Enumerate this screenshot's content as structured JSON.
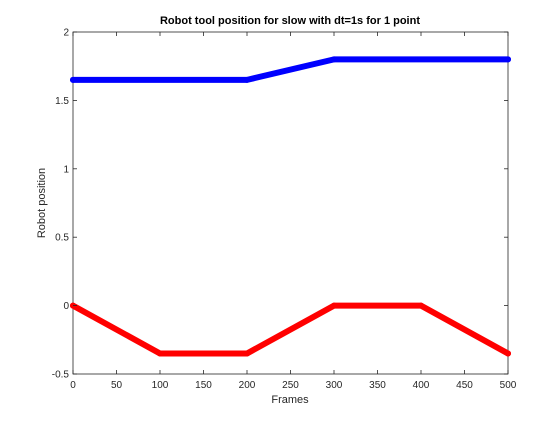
{
  "chart_data": {
    "type": "line",
    "title": "Robot tool position for slow with dt=1s for 1 point",
    "xlabel": "Frames",
    "ylabel": "Robot position",
    "xlim": [
      0,
      500
    ],
    "ylim": [
      -0.5,
      2
    ],
    "xticks": [
      0,
      50,
      100,
      150,
      200,
      250,
      300,
      350,
      400,
      450,
      500
    ],
    "yticks": [
      -0.5,
      0,
      0.5,
      1,
      1.5,
      2
    ],
    "xtick_labels": [
      "0",
      "50",
      "100",
      "150",
      "200",
      "250",
      "300",
      "350",
      "400",
      "450",
      "500"
    ],
    "ytick_labels": [
      "-0.5",
      "0",
      "0.5",
      "1",
      "1.5",
      "2"
    ],
    "grid": false,
    "legend": "none",
    "series": [
      {
        "color": "#0000ff",
        "x": [
          0,
          200,
          300,
          500
        ],
        "y": [
          1.65,
          1.65,
          1.8,
          1.8
        ]
      },
      {
        "color": "#ff0000",
        "x": [
          0,
          100,
          200,
          300,
          400,
          500
        ],
        "y": [
          0,
          -0.35,
          -0.35,
          0,
          0,
          -0.35
        ]
      }
    ]
  }
}
